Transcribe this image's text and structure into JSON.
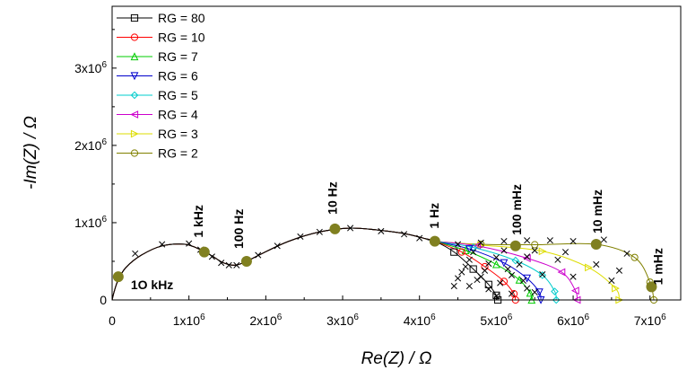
{
  "chart_data": {
    "type": "scatter",
    "title": "",
    "xlabel": "Re(Z) / Ω",
    "ylabel": "-Im(Z) / Ω",
    "xlim": [
      0,
      7400000
    ],
    "ylim": [
      0,
      3800000
    ],
    "xticks": [
      {
        "value": 0,
        "mant": "0",
        "exp": ""
      },
      {
        "value": 1000000,
        "mant": "1x10",
        "exp": "6"
      },
      {
        "value": 2000000,
        "mant": "2x10",
        "exp": "6"
      },
      {
        "value": 3000000,
        "mant": "3x10",
        "exp": "6"
      },
      {
        "value": 4000000,
        "mant": "4x10",
        "exp": "6"
      },
      {
        "value": 5000000,
        "mant": "5x10",
        "exp": "6"
      },
      {
        "value": 6000000,
        "mant": "6x10",
        "exp": "6"
      },
      {
        "value": 7000000,
        "mant": "7x10",
        "exp": "6"
      }
    ],
    "yticks": [
      {
        "value": 0,
        "mant": "0",
        "exp": ""
      },
      {
        "value": 1000000,
        "mant": "1x10",
        "exp": "6"
      },
      {
        "value": 2000000,
        "mant": "2x10",
        "exp": "6"
      },
      {
        "value": 3000000,
        "mant": "3x10",
        "exp": "6"
      }
    ],
    "grid": false,
    "legend_position": "top-left",
    "common_path": [
      [
        0,
        0
      ],
      [
        30000,
        120000
      ],
      [
        80000,
        260000
      ],
      [
        180000,
        420000
      ],
      [
        380000,
        580000
      ],
      [
        650000,
        700000
      ],
      [
        950000,
        720000
      ],
      [
        1150000,
        650000
      ],
      [
        1300000,
        570000
      ],
      [
        1450000,
        480000
      ],
      [
        1600000,
        450000
      ],
      [
        1750000,
        500000
      ],
      [
        1950000,
        600000
      ],
      [
        2300000,
        760000
      ],
      [
        2700000,
        880000
      ],
      [
        3100000,
        930000
      ],
      [
        3500000,
        900000
      ],
      [
        3800000,
        860000
      ],
      [
        4050000,
        800000
      ],
      [
        4200000,
        760000
      ]
    ],
    "series": [
      {
        "name": "RG = 80",
        "color": "#000000",
        "marker": "square",
        "curve": [
          [
            4450000,
            620000
          ],
          [
            4700000,
            400000
          ],
          [
            4900000,
            200000
          ],
          [
            5000000,
            60000
          ],
          [
            5020000,
            0
          ]
        ]
      },
      {
        "name": "RG = 10",
        "color": "#ff0000",
        "marker": "circle",
        "curve": [
          [
            4550000,
            620000
          ],
          [
            4850000,
            430000
          ],
          [
            5100000,
            240000
          ],
          [
            5230000,
            80000
          ],
          [
            5250000,
            0
          ]
        ]
      },
      {
        "name": "RG = 7",
        "color": "#00cc00",
        "marker": "triangle-up",
        "curve": [
          [
            4600000,
            640000
          ],
          [
            5000000,
            460000
          ],
          [
            5300000,
            260000
          ],
          [
            5440000,
            90000
          ],
          [
            5460000,
            0
          ]
        ]
      },
      {
        "name": "RG = 6",
        "color": "#0000cc",
        "marker": "triangle-down",
        "curve": [
          [
            4650000,
            660000
          ],
          [
            5100000,
            480000
          ],
          [
            5400000,
            280000
          ],
          [
            5560000,
            100000
          ],
          [
            5580000,
            0
          ]
        ]
      },
      {
        "name": "RG = 5",
        "color": "#00cccc",
        "marker": "diamond",
        "curve": [
          [
            4700000,
            680000
          ],
          [
            5250000,
            510000
          ],
          [
            5600000,
            320000
          ],
          [
            5760000,
            110000
          ],
          [
            5780000,
            0
          ]
        ]
      },
      {
        "name": "RG = 4",
        "color": "#cc00cc",
        "marker": "triangle-left",
        "curve": [
          [
            4750000,
            700000
          ],
          [
            5400000,
            540000
          ],
          [
            5850000,
            360000
          ],
          [
            6030000,
            120000
          ],
          [
            6050000,
            0
          ]
        ]
      },
      {
        "name": "RG = 3",
        "color": "#dddd00",
        "marker": "triangle-right",
        "curve": [
          [
            4800000,
            710000
          ],
          [
            5600000,
            630000
          ],
          [
            6200000,
            420000
          ],
          [
            6550000,
            150000
          ],
          [
            6600000,
            0
          ]
        ]
      },
      {
        "name": "RG = 2",
        "color": "#808000",
        "marker": "circle",
        "curve": [
          [
            4800000,
            720000
          ],
          [
            5500000,
            715000
          ],
          [
            6300000,
            720000
          ],
          [
            6800000,
            550000
          ],
          [
            7000000,
            230000
          ],
          [
            7050000,
            0
          ]
        ]
      }
    ],
    "highlight_points": [
      {
        "label": "1O kHz",
        "x": 80000,
        "y": 300000
      },
      {
        "label": "1 kHz",
        "x": 1200000,
        "y": 620000
      },
      {
        "label": "100 Hz",
        "x": 1750000,
        "y": 500000
      },
      {
        "label": "10 Hz",
        "x": 2900000,
        "y": 920000
      },
      {
        "label": "1 Hz",
        "x": 4200000,
        "y": 760000
      },
      {
        "label": "100 mHz",
        "x": 5250000,
        "y": 700000
      },
      {
        "label": "10 mHz",
        "x": 6300000,
        "y": 720000
      },
      {
        "label": "1 mHz",
        "x": 7020000,
        "y": 170000
      }
    ],
    "x_marker_points": [
      [
        300000,
        600000
      ],
      [
        650000,
        720000
      ],
      [
        1000000,
        730000
      ],
      [
        1150000,
        650000
      ],
      [
        1300000,
        560000
      ],
      [
        1420000,
        480000
      ],
      [
        1520000,
        450000
      ],
      [
        1620000,
        450000
      ],
      [
        1900000,
        580000
      ],
      [
        2150000,
        700000
      ],
      [
        2450000,
        820000
      ],
      [
        2700000,
        880000
      ],
      [
        3100000,
        930000
      ],
      [
        3500000,
        890000
      ],
      [
        3800000,
        850000
      ],
      [
        4000000,
        800000
      ],
      [
        4500000,
        720000
      ],
      [
        4800000,
        740000
      ],
      [
        5100000,
        760000
      ],
      [
        5400000,
        770000
      ],
      [
        5700000,
        770000
      ],
      [
        6000000,
        760000
      ],
      [
        6400000,
        780000
      ],
      [
        6700000,
        600000
      ],
      [
        6600000,
        380000
      ],
      [
        4700000,
        620000
      ],
      [
        5100000,
        640000
      ],
      [
        5500000,
        640000
      ],
      [
        5900000,
        620000
      ],
      [
        6300000,
        460000
      ],
      [
        6500000,
        250000
      ],
      [
        4650000,
        520000
      ],
      [
        5000000,
        550000
      ],
      [
        5400000,
        560000
      ],
      [
        5800000,
        520000
      ],
      [
        6000000,
        300000
      ],
      [
        4600000,
        430000
      ],
      [
        4900000,
        470000
      ],
      [
        5300000,
        460000
      ],
      [
        5600000,
        330000
      ],
      [
        4550000,
        360000
      ],
      [
        4850000,
        380000
      ],
      [
        5200000,
        320000
      ],
      [
        5400000,
        150000
      ],
      [
        4500000,
        280000
      ],
      [
        4750000,
        260000
      ],
      [
        5050000,
        220000
      ],
      [
        5200000,
        80000
      ],
      [
        4450000,
        180000
      ],
      [
        4650000,
        180000
      ],
      [
        4900000,
        140000
      ],
      [
        5000000,
        50000
      ],
      [
        4800000,
        300000
      ],
      [
        5150000,
        400000
      ],
      [
        5350000,
        250000
      ],
      [
        5500000,
        100000
      ]
    ]
  }
}
